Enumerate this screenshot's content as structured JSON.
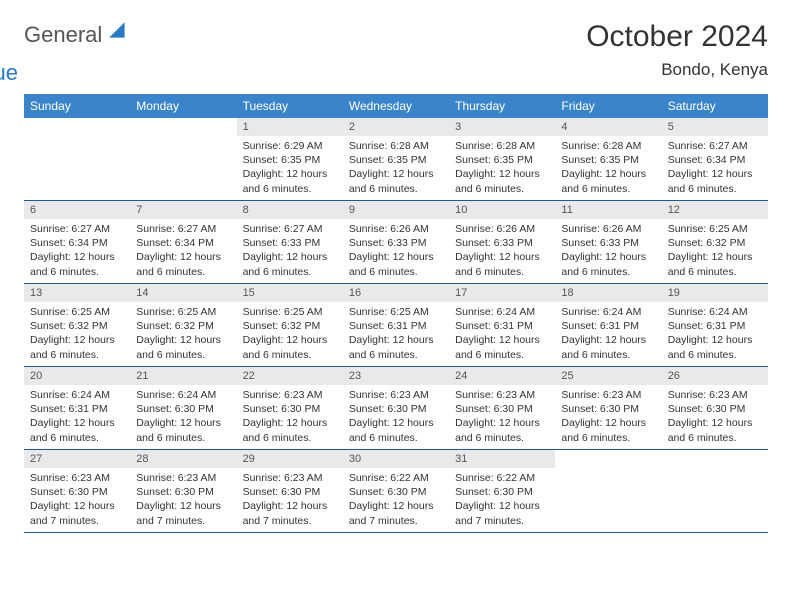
{
  "logo": {
    "part1": "General",
    "part2": "Blue"
  },
  "title": "October 2024",
  "location": "Bondo, Kenya",
  "colors": {
    "header_bg": "#3a85c9",
    "header_text": "#ffffff",
    "row_divider": "#1f5a96",
    "daynum_bg": "#e9e9e9",
    "logo_gray": "#555555",
    "logo_blue": "#2a7ac2"
  },
  "day_headers": [
    "Sunday",
    "Monday",
    "Tuesday",
    "Wednesday",
    "Thursday",
    "Friday",
    "Saturday"
  ],
  "weeks": [
    [
      null,
      null,
      {
        "n": "1",
        "sr": "6:29 AM",
        "ss": "6:35 PM",
        "dl": "12 hours and 6 minutes."
      },
      {
        "n": "2",
        "sr": "6:28 AM",
        "ss": "6:35 PM",
        "dl": "12 hours and 6 minutes."
      },
      {
        "n": "3",
        "sr": "6:28 AM",
        "ss": "6:35 PM",
        "dl": "12 hours and 6 minutes."
      },
      {
        "n": "4",
        "sr": "6:28 AM",
        "ss": "6:35 PM",
        "dl": "12 hours and 6 minutes."
      },
      {
        "n": "5",
        "sr": "6:27 AM",
        "ss": "6:34 PM",
        "dl": "12 hours and 6 minutes."
      }
    ],
    [
      {
        "n": "6",
        "sr": "6:27 AM",
        "ss": "6:34 PM",
        "dl": "12 hours and 6 minutes."
      },
      {
        "n": "7",
        "sr": "6:27 AM",
        "ss": "6:34 PM",
        "dl": "12 hours and 6 minutes."
      },
      {
        "n": "8",
        "sr": "6:27 AM",
        "ss": "6:33 PM",
        "dl": "12 hours and 6 minutes."
      },
      {
        "n": "9",
        "sr": "6:26 AM",
        "ss": "6:33 PM",
        "dl": "12 hours and 6 minutes."
      },
      {
        "n": "10",
        "sr": "6:26 AM",
        "ss": "6:33 PM",
        "dl": "12 hours and 6 minutes."
      },
      {
        "n": "11",
        "sr": "6:26 AM",
        "ss": "6:33 PM",
        "dl": "12 hours and 6 minutes."
      },
      {
        "n": "12",
        "sr": "6:25 AM",
        "ss": "6:32 PM",
        "dl": "12 hours and 6 minutes."
      }
    ],
    [
      {
        "n": "13",
        "sr": "6:25 AM",
        "ss": "6:32 PM",
        "dl": "12 hours and 6 minutes."
      },
      {
        "n": "14",
        "sr": "6:25 AM",
        "ss": "6:32 PM",
        "dl": "12 hours and 6 minutes."
      },
      {
        "n": "15",
        "sr": "6:25 AM",
        "ss": "6:32 PM",
        "dl": "12 hours and 6 minutes."
      },
      {
        "n": "16",
        "sr": "6:25 AM",
        "ss": "6:31 PM",
        "dl": "12 hours and 6 minutes."
      },
      {
        "n": "17",
        "sr": "6:24 AM",
        "ss": "6:31 PM",
        "dl": "12 hours and 6 minutes."
      },
      {
        "n": "18",
        "sr": "6:24 AM",
        "ss": "6:31 PM",
        "dl": "12 hours and 6 minutes."
      },
      {
        "n": "19",
        "sr": "6:24 AM",
        "ss": "6:31 PM",
        "dl": "12 hours and 6 minutes."
      }
    ],
    [
      {
        "n": "20",
        "sr": "6:24 AM",
        "ss": "6:31 PM",
        "dl": "12 hours and 6 minutes."
      },
      {
        "n": "21",
        "sr": "6:24 AM",
        "ss": "6:30 PM",
        "dl": "12 hours and 6 minutes."
      },
      {
        "n": "22",
        "sr": "6:23 AM",
        "ss": "6:30 PM",
        "dl": "12 hours and 6 minutes."
      },
      {
        "n": "23",
        "sr": "6:23 AM",
        "ss": "6:30 PM",
        "dl": "12 hours and 6 minutes."
      },
      {
        "n": "24",
        "sr": "6:23 AM",
        "ss": "6:30 PM",
        "dl": "12 hours and 6 minutes."
      },
      {
        "n": "25",
        "sr": "6:23 AM",
        "ss": "6:30 PM",
        "dl": "12 hours and 6 minutes."
      },
      {
        "n": "26",
        "sr": "6:23 AM",
        "ss": "6:30 PM",
        "dl": "12 hours and 6 minutes."
      }
    ],
    [
      {
        "n": "27",
        "sr": "6:23 AM",
        "ss": "6:30 PM",
        "dl": "12 hours and 7 minutes."
      },
      {
        "n": "28",
        "sr": "6:23 AM",
        "ss": "6:30 PM",
        "dl": "12 hours and 7 minutes."
      },
      {
        "n": "29",
        "sr": "6:23 AM",
        "ss": "6:30 PM",
        "dl": "12 hours and 7 minutes."
      },
      {
        "n": "30",
        "sr": "6:22 AM",
        "ss": "6:30 PM",
        "dl": "12 hours and 7 minutes."
      },
      {
        "n": "31",
        "sr": "6:22 AM",
        "ss": "6:30 PM",
        "dl": "12 hours and 7 minutes."
      },
      null,
      null
    ]
  ],
  "labels": {
    "sunrise": "Sunrise:",
    "sunset": "Sunset:",
    "daylight": "Daylight:"
  }
}
